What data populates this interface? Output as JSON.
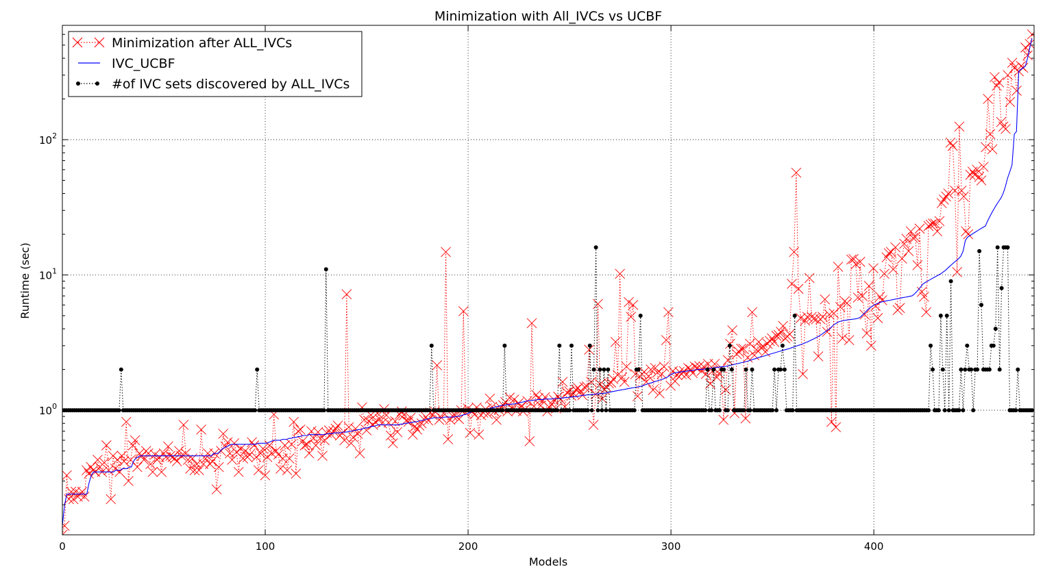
{
  "chart_data": {
    "type": "line",
    "title": "Minimization with All_IVCs vs UCBF",
    "xlabel": "Models",
    "ylabel": "Runtime (sec)",
    "xlim": [
      0,
      479
    ],
    "ylim": [
      0.12,
      700
    ],
    "yscale": "log",
    "grid": true,
    "legend_position": "top-left",
    "x_ticks": [
      {
        "value": 0,
        "label": "0"
      },
      {
        "value": 100,
        "label": "100"
      },
      {
        "value": 200,
        "label": "200"
      },
      {
        "value": 300,
        "label": "300"
      },
      {
        "value": 400,
        "label": "400"
      }
    ],
    "y_ticks": [
      {
        "value": 1,
        "base": "10",
        "exp": "0"
      },
      {
        "value": 10,
        "base": "10",
        "exp": "1"
      },
      {
        "value": 100,
        "base": "10",
        "exp": "2"
      }
    ],
    "series": [
      {
        "name": "Minimization after ALL_IVCs",
        "color": "#ff0000",
        "line_style": "dotted",
        "marker": "x",
        "x_range": [
          0,
          478
        ],
        "values": [
          0.12,
          0.14,
          0.33,
          0.22,
          0.25,
          0.22,
          0.25,
          0.23,
          0.24,
          0.25,
          0.23,
          0.36,
          0.34,
          0.38,
          0.36,
          0.35,
          0.43,
          0.38,
          0.35,
          0.41,
          0.55,
          0.36,
          0.22,
          0.46,
          0.37,
          0.43,
          0.35,
          0.46,
          0.42,
          0.82,
          0.3,
          0.43,
          0.55,
          0.6,
          0.38,
          0.48,
          0.46,
          0.43,
          0.5,
          0.48,
          0.4,
          0.35,
          0.47,
          0.43,
          0.45,
          0.35,
          0.48,
          0.45,
          0.54,
          0.46,
          0.45,
          0.44,
          0.42,
          0.5,
          0.46,
          0.78,
          0.48,
          0.43,
          0.37,
          0.44,
          0.36,
          0.4,
          0.36,
          0.72,
          0.4,
          0.44,
          0.48,
          0.4,
          0.42,
          0.48,
          0.26,
          0.38,
          0.5,
          0.67,
          0.54,
          0.58,
          0.48,
          0.43,
          0.57,
          0.49,
          0.35,
          0.52,
          0.44,
          0.5,
          0.45,
          0.47,
          0.58,
          0.55,
          0.45,
          0.36,
          0.48,
          0.52,
          0.33,
          0.45,
          0.55,
          0.48,
          0.93,
          0.5,
          0.47,
          0.37,
          0.44,
          0.55,
          0.36,
          0.44,
          0.56,
          0.82,
          0.34,
          0.7,
          0.72,
          0.59,
          0.55,
          0.56,
          0.48,
          0.7,
          0.62,
          0.55,
          0.69,
          0.62,
          0.46,
          0.6,
          0.68,
          0.71,
          0.66,
          0.7,
          0.73,
          0.77,
          0.65,
          0.68,
          0.6,
          7.2,
          0.75,
          0.57,
          0.63,
          0.73,
          0.67,
          0.48,
          1.05,
          0.85,
          0.71,
          0.83,
          0.92,
          0.78,
          0.82,
          0.95,
          0.86,
          0.8,
          1.02,
          0.92,
          0.81,
          0.65,
          0.57,
          0.83,
          0.69,
          0.93,
          0.98,
          0.92,
          0.84,
          0.82,
          0.88,
          0.66,
          0.76,
          0.72,
          0.77,
          0.8,
          0.86,
          0.89,
          0.84,
          0.96,
          0.92,
          0.98,
          2.15,
          0.85,
          0.88,
          0.95,
          14.8,
          0.61,
          0.85,
          0.91,
          0.92,
          0.89,
          0.86,
          1.0,
          5.4,
          0.96,
          1.03,
          0.68,
          0.98,
          0.93,
          1.05,
          0.66,
          0.92,
          0.96,
          1.02,
          0.94,
          1.22,
          1.06,
          0.98,
          0.85,
          1.01,
          1.04,
          1.09,
          1.15,
          0.98,
          1.24,
          1.04,
          1.2,
          0.99,
          1.13,
          1.06,
          0.98,
          1.02,
          1.17,
          0.59,
          4.4,
          1.07,
          1.3,
          1.23,
          1.08,
          1.17,
          1.25,
          0.98,
          1.05,
          1.11,
          1.2,
          1.03,
          1.26,
          1.2,
          1.62,
          1.06,
          1.35,
          1.38,
          1.28,
          1.33,
          1.42,
          1.46,
          1.38,
          1.29,
          1.48,
          1.5,
          2.8,
          1.62,
          0.78,
          1.31,
          6.1,
          1.56,
          1.22,
          1.42,
          1.48,
          1.58,
          1.6,
          1.7,
          3.2,
          1.82,
          10.2,
          1.75,
          1.62,
          2.1,
          6.3,
          4.9,
          6.0,
          1.85,
          1.27,
          1.78,
          1.85,
          1.92,
          1.62,
          1.78,
          2.0,
          1.41,
          2.05,
          1.9,
          1.33,
          1.85,
          2.1,
          3.3,
          5.3,
          1.52,
          1.95,
          1.64,
          1.82,
          1.92,
          1.85,
          1.95,
          1.82,
          2.05,
          2.0,
          1.88,
          2.1,
          2.05,
          2.12,
          1.95,
          2.1,
          1.85,
          2.2,
          1.57,
          1.95,
          2.2,
          1.75,
          1.87,
          2.05,
          0.85,
          1.42,
          2.35,
          3.1,
          3.9,
          0.95,
          2.6,
          2.7,
          2.85,
          2.85,
          0.87,
          2.45,
          3.1,
          5.3,
          2.55,
          2.8,
          3.2,
          2.9,
          2.95,
          2.7,
          3.1,
          3.25,
          3.4,
          3.2,
          3.55,
          3.6,
          3.8,
          4.2,
          3.4,
          3.5,
          3.65,
          8.6,
          14.8,
          57.0,
          7.9,
          4.8,
          1.85,
          4.6,
          4.9,
          9.5,
          4.9,
          4.75,
          4.7,
          2.5,
          4.7,
          4.9,
          6.6,
          3.8,
          5.1,
          0.82,
          5.2,
          0.75,
          11.5,
          5.8,
          3.4,
          6.4,
          6.2,
          3.3,
          13.0,
          13.1,
          12.0,
          6.8,
          12.5,
          7.0,
          5.1,
          3.7,
          8.3,
          3.0,
          11.2,
          5.9,
          4.8,
          6.9,
          6.5,
          10.2,
          13.5,
          14.5,
          14.8,
          11.0,
          16.0,
          5.5,
          5.7,
          13.2,
          17.0,
          18.5,
          15.0,
          21.0,
          18.8,
          19.0,
          11.8,
          22.0,
          7.5,
          6.9,
          5.3,
          23.0,
          23.5,
          24.0,
          24.0,
          21.0,
          25.0,
          34.0,
          36.0,
          38.0,
          40.0,
          95.0,
          90.0,
          42.0,
          10.5,
          125.0,
          42.0,
          38.0,
          21.0,
          20.0,
          55.0,
          58.0,
          55.0,
          60.0,
          53.0,
          50.0,
          63.0,
          88.0,
          200.0,
          110.0,
          85.0,
          290.0,
          250.0,
          265.0,
          135.0,
          125.0,
          120.0,
          300.0,
          190.0,
          370.0,
          340.0,
          230.0,
          320.0,
          350.0,
          340.0,
          480.0,
          420.0,
          510.0,
          600.0
        ]
      },
      {
        "name": "IVC_UCBF",
        "color": "#0000ff",
        "line_style": "solid",
        "marker": "none",
        "x_range": [
          0,
          478
        ],
        "values": [
          0.14,
          0.2,
          0.24,
          0.24,
          0.24,
          0.24,
          0.24,
          0.24,
          0.24,
          0.24,
          0.24,
          0.24,
          0.29,
          0.33,
          0.35,
          0.35,
          0.35,
          0.35,
          0.35,
          0.35,
          0.35,
          0.35,
          0.35,
          0.35,
          0.36,
          0.36,
          0.36,
          0.37,
          0.37,
          0.37,
          0.38,
          0.38,
          0.42,
          0.44,
          0.45,
          0.46,
          0.46,
          0.46,
          0.46,
          0.46,
          0.46,
          0.46,
          0.46,
          0.46,
          0.46,
          0.46,
          0.46,
          0.46,
          0.46,
          0.46,
          0.46,
          0.46,
          0.46,
          0.46,
          0.46,
          0.46,
          0.46,
          0.46,
          0.46,
          0.46,
          0.46,
          0.46,
          0.46,
          0.46,
          0.46,
          0.46,
          0.46,
          0.46,
          0.48,
          0.48,
          0.48,
          0.5,
          0.52,
          0.53,
          0.54,
          0.55,
          0.56,
          0.56,
          0.56,
          0.56,
          0.56,
          0.56,
          0.56,
          0.56,
          0.56,
          0.56,
          0.56,
          0.56,
          0.57,
          0.57,
          0.57,
          0.57,
          0.57,
          0.58,
          0.59,
          0.6,
          0.6,
          0.6,
          0.6,
          0.61,
          0.61,
          0.61,
          0.62,
          0.62,
          0.63,
          0.63,
          0.64,
          0.64,
          0.65,
          0.65,
          0.65,
          0.66,
          0.66,
          0.66,
          0.66,
          0.66,
          0.66,
          0.66,
          0.66,
          0.67,
          0.67,
          0.67,
          0.68,
          0.68,
          0.68,
          0.68,
          0.69,
          0.69,
          0.69,
          0.7,
          0.7,
          0.71,
          0.71,
          0.72,
          0.72,
          0.73,
          0.74,
          0.74,
          0.75,
          0.76,
          0.76,
          0.77,
          0.78,
          0.78,
          0.78,
          0.78,
          0.78,
          0.78,
          0.78,
          0.78,
          0.78,
          0.78,
          0.79,
          0.79,
          0.8,
          0.8,
          0.81,
          0.81,
          0.82,
          0.82,
          0.83,
          0.84,
          0.84,
          0.85,
          0.86,
          0.87,
          0.87,
          0.88,
          0.88,
          0.88,
          0.88,
          0.88,
          0.89,
          0.89,
          0.89,
          0.89,
          0.89,
          0.9,
          0.9,
          0.91,
          0.92,
          0.93,
          0.94,
          0.96,
          0.97,
          0.98,
          0.98,
          0.99,
          1.0,
          1.0,
          1.01,
          1.02,
          1.03,
          1.04,
          1.05,
          1.06,
          1.07,
          1.08,
          1.09,
          1.09,
          1.1,
          1.1,
          1.11,
          1.11,
          1.12,
          1.13,
          1.14,
          1.15,
          1.16,
          1.17,
          1.18,
          1.18,
          1.19,
          1.19,
          1.2,
          1.2,
          1.2,
          1.21,
          1.21,
          1.21,
          1.21,
          1.22,
          1.22,
          1.22,
          1.23,
          1.23,
          1.24,
          1.24,
          1.25,
          1.25,
          1.26,
          1.26,
          1.27,
          1.28,
          1.29,
          1.29,
          1.3,
          1.3,
          1.31,
          1.31,
          1.32,
          1.32,
          1.33,
          1.33,
          1.34,
          1.35,
          1.36,
          1.37,
          1.38,
          1.39,
          1.4,
          1.41,
          1.42,
          1.43,
          1.44,
          1.45,
          1.46,
          1.47,
          1.48,
          1.49,
          1.5,
          1.52,
          1.54,
          1.56,
          1.58,
          1.6,
          1.62,
          1.64,
          1.66,
          1.68,
          1.7,
          1.73,
          1.76,
          1.8,
          1.85,
          1.88,
          1.9,
          1.91,
          1.92,
          1.93,
          1.94,
          1.95,
          1.96,
          1.97,
          1.98,
          1.99,
          2.0,
          2.0,
          2.01,
          2.02,
          2.03,
          2.04,
          2.05,
          2.06,
          2.07,
          2.08,
          2.09,
          2.1,
          2.11,
          2.12,
          2.14,
          2.16,
          2.18,
          2.2,
          2.22,
          2.24,
          2.26,
          2.28,
          2.3,
          2.33,
          2.36,
          2.39,
          2.42,
          2.45,
          2.48,
          2.5,
          2.53,
          2.56,
          2.59,
          2.62,
          2.65,
          2.68,
          2.71,
          2.74,
          2.77,
          2.8,
          2.83,
          2.86,
          2.9,
          2.94,
          2.98,
          3.02,
          3.06,
          3.1,
          3.15,
          3.2,
          3.26,
          3.32,
          3.38,
          3.45,
          3.52,
          3.6,
          3.7,
          3.8,
          3.9,
          4.0,
          4.15,
          4.3,
          4.4,
          4.5,
          4.55,
          4.6,
          4.62,
          4.65,
          4.68,
          4.7,
          4.72,
          4.75,
          4.8,
          4.9,
          5.1,
          5.3,
          5.5,
          5.7,
          5.85,
          6.0,
          6.1,
          6.2,
          6.3,
          6.35,
          6.4,
          6.45,
          6.5,
          6.55,
          6.6,
          6.65,
          6.7,
          6.75,
          6.8,
          6.85,
          6.9,
          6.95,
          7.0,
          7.2,
          7.5,
          7.8,
          8.2,
          8.6,
          8.8,
          9.0,
          9.2,
          9.4,
          9.6,
          9.8,
          10.0,
          10.2,
          10.5,
          10.8,
          11.2,
          11.6,
          12.0,
          12.4,
          12.8,
          13.2,
          13.8,
          15.0,
          18.0,
          19.0,
          19.5,
          20.0,
          20.5,
          21.0,
          21.5,
          22.0,
          22.5,
          23.0,
          25.0,
          27.0,
          29.0,
          31.0,
          33.0,
          35.0,
          37.0,
          40.0,
          45.0,
          52.0,
          58.0,
          65.0,
          110.0,
          115.0,
          320.0,
          330.0,
          340.0,
          350.0,
          400.0,
          480.0,
          560.0
        ]
      },
      {
        "name": "#of IVC sets discovered by ALL_IVCs",
        "color": "#000000",
        "line_style": "dotted",
        "marker": "dot",
        "x_range": [
          0,
          478
        ],
        "baseline": 1,
        "spikes": [
          [
            29,
            2
          ],
          [
            96,
            2
          ],
          [
            130,
            11
          ],
          [
            182,
            3
          ],
          [
            218,
            3
          ],
          [
            245,
            3
          ],
          [
            251,
            3
          ],
          [
            260,
            3
          ],
          [
            262,
            2
          ],
          [
            263,
            16
          ],
          [
            265,
            2
          ],
          [
            267,
            2
          ],
          [
            269,
            2
          ],
          [
            283,
            2
          ],
          [
            284,
            2
          ],
          [
            285,
            5
          ],
          [
            318,
            2
          ],
          [
            321,
            2
          ],
          [
            325,
            2
          ],
          [
            326,
            2
          ],
          [
            329,
            3
          ],
          [
            330,
            2
          ],
          [
            337,
            2
          ],
          [
            340,
            2
          ],
          [
            351,
            2
          ],
          [
            353,
            2
          ],
          [
            354,
            2
          ],
          [
            355,
            3
          ],
          [
            356,
            2
          ],
          [
            361,
            5
          ],
          [
            428,
            3
          ],
          [
            429,
            2
          ],
          [
            433,
            5
          ],
          [
            434,
            2
          ],
          [
            436,
            5
          ],
          [
            438,
            9
          ],
          [
            443,
            2
          ],
          [
            445,
            2
          ],
          [
            446,
            3
          ],
          [
            447,
            2
          ],
          [
            448,
            2
          ],
          [
            450,
            2
          ],
          [
            451,
            2
          ],
          [
            452,
            15
          ],
          [
            453,
            6
          ],
          [
            454,
            2
          ],
          [
            455,
            2
          ],
          [
            456,
            2
          ],
          [
            457,
            2
          ],
          [
            458,
            3
          ],
          [
            459,
            3
          ],
          [
            460,
            4
          ],
          [
            461,
            16
          ],
          [
            462,
            2
          ],
          [
            463,
            8
          ],
          [
            464,
            16
          ],
          [
            465,
            16
          ],
          [
            466,
            16
          ],
          [
            471,
            2
          ]
        ]
      }
    ]
  }
}
